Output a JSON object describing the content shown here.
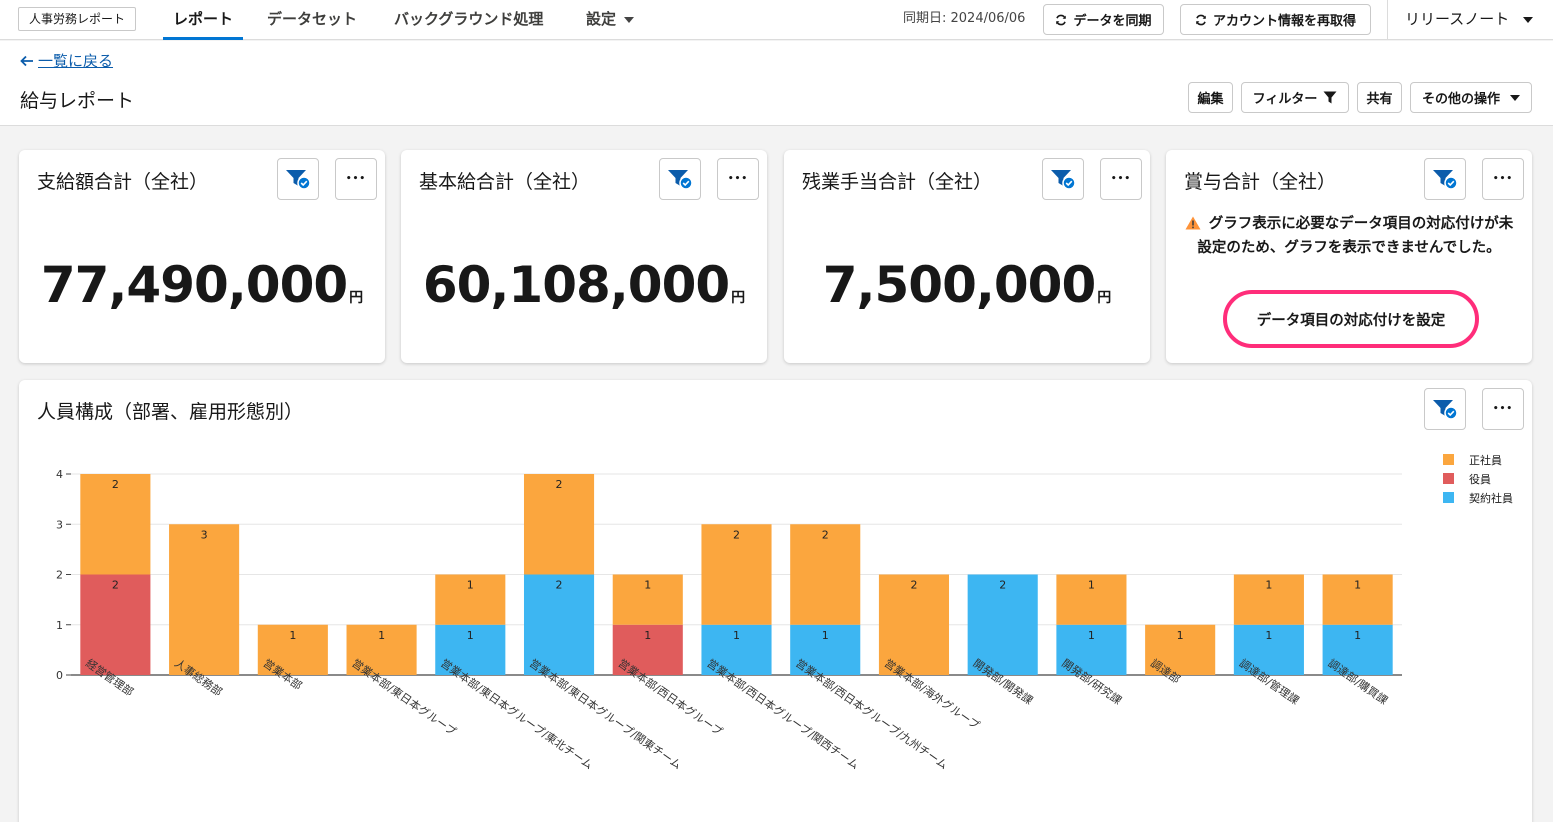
{
  "nav": {
    "app_name": "人事労務レポート",
    "tabs": [
      {
        "label": "レポート"
      },
      {
        "label": "データセット"
      },
      {
        "label": "バックグラウンド処理"
      },
      {
        "label": "設定"
      }
    ],
    "sync_date": "同期日: 2024/06/06",
    "sync_button": "データを同期",
    "refetch_button": "アカウント情報を再取得",
    "release_notes": "リリースノート"
  },
  "header": {
    "back_link": "一覧に戻る",
    "title": "給与レポート",
    "actions": {
      "edit": "編集",
      "filter": "フィルター",
      "share": "共有",
      "more": "その他の操作"
    }
  },
  "cards": [
    {
      "title": "支給額合計（全社）",
      "value": "77,490,000",
      "unit": "円"
    },
    {
      "title": "基本給合計（全社）",
      "value": "60,108,000",
      "unit": "円"
    },
    {
      "title": "残業手当合計（全社）",
      "value": "7,500,000",
      "unit": "円"
    },
    {
      "title": "賞与合計（全社）",
      "warning": "グラフ表示に必要なデータ項目の対応付けが未設定のため、グラフを表示できませんでした。",
      "button": "データ項目の対応付けを設定"
    }
  ],
  "more_glyph": "•••",
  "colors": {
    "brand": "#0176d3",
    "highlight": "#ff2d7a",
    "warning": "#fe9339"
  },
  "chart_data": {
    "type": "bar",
    "stacked": true,
    "title": "人員構成（部署、雇用形態別）",
    "categories": [
      "経営管理部",
      "人事総務部",
      "営業本部",
      "営業本部/東日本グループ",
      "営業本部/東日本グループ/東北チーム",
      "営業本部/東日本グループ/関東チーム",
      "営業本部/西日本グループ",
      "営業本部/西日本グループ/関西チーム",
      "営業本部/西日本グループ/九州チーム",
      "営業本部/海外グループ",
      "開発部/開発課",
      "開発部/研究課",
      "調達部",
      "調達部/管理課",
      "調達部/購買課"
    ],
    "series": [
      {
        "name": "役員",
        "color": "#e05c5c",
        "values": [
          2,
          0,
          0,
          0,
          0,
          0,
          1,
          0,
          0,
          0,
          0,
          0,
          0,
          0,
          0
        ]
      },
      {
        "name": "契約社員",
        "color": "#3db6f2",
        "values": [
          0,
          0,
          0,
          0,
          1,
          2,
          0,
          1,
          1,
          0,
          2,
          1,
          0,
          1,
          1
        ]
      },
      {
        "name": "正社員",
        "color": "#fba63e",
        "values": [
          2,
          3,
          1,
          1,
          1,
          2,
          1,
          2,
          2,
          2,
          0,
          1,
          1,
          1,
          1
        ]
      }
    ],
    "legend_order": [
      "正社員",
      "役員",
      "契約社員"
    ],
    "legend_position": "top-right",
    "ylim": [
      0,
      4
    ],
    "yticks": [
      0,
      1,
      2,
      3,
      4
    ],
    "grid": true
  }
}
